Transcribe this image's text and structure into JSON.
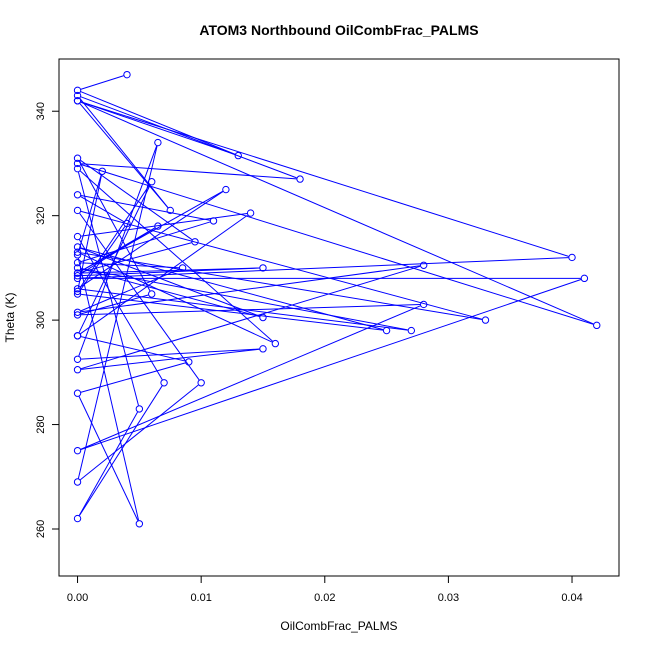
{
  "chart_data": {
    "type": "line",
    "title": "ATOM3 Northbound OilCombFrac_PALMS",
    "xlabel": "OilCombFrac_PALMS",
    "ylabel": "Theta (K)",
    "xlim": [
      -0.0015,
      0.0438
    ],
    "ylim": [
      251,
      350
    ],
    "xticks": [
      0.0,
      0.01,
      0.02,
      0.03,
      0.04
    ],
    "xtick_labels": [
      "0.00",
      "0.01",
      "0.02",
      "0.03",
      "0.04"
    ],
    "yticks": [
      260,
      280,
      300,
      320,
      340
    ],
    "ytick_labels": [
      "260",
      "280",
      "300",
      "320",
      "340"
    ],
    "grid": false,
    "legend": "none",
    "series_color": "#0000ff",
    "marker": "open-circle",
    "series": [
      {
        "x": [
          0.004,
          0.0,
          0.013,
          0.0,
          0.0075,
          0.0,
          0.018,
          0.0,
          0.042,
          0.0,
          0.04,
          0.0,
          0.041,
          0.0,
          0.028,
          0.0,
          0.006,
          0.0,
          0.0095,
          0.0,
          0.015,
          0.0,
          0.0065,
          0.0,
          0.012,
          0.0,
          0.027,
          0.0,
          0.015,
          0.0,
          0.025,
          0.0,
          0.004,
          0.0,
          0.011,
          0.0,
          0.0085,
          0.0,
          0.028,
          0.0,
          0.015,
          0.0,
          0.0065,
          0.0,
          0.01,
          0.0,
          0.033,
          0.0,
          0.016,
          0.0,
          0.005,
          0.0,
          0.007,
          0.0,
          0.014,
          0.0,
          0.009,
          0.0,
          0.005,
          0.0,
          0.002,
          0.0,
          0.006,
          0.0
        ],
        "y": [
          347,
          344,
          331.5,
          342,
          321,
          343,
          327,
          330,
          299,
          342,
          312,
          308,
          308,
          275,
          303,
          301,
          305,
          331,
          315,
          309,
          310,
          308.5,
          318,
          309,
          325,
          306,
          298,
          310,
          300.5,
          314,
          298,
          305,
          318.5,
          324,
          319,
          311,
          310,
          301.5,
          310.5,
          290.5,
          294.5,
          292.5,
          334,
          269,
          288,
          321,
          300,
          313,
          295.5,
          329,
          283,
          262,
          288,
          316,
          320.5,
          297,
          292,
          286,
          261,
          312.5,
          328.5,
          305.5,
          326.5,
          297
        ]
      }
    ]
  }
}
